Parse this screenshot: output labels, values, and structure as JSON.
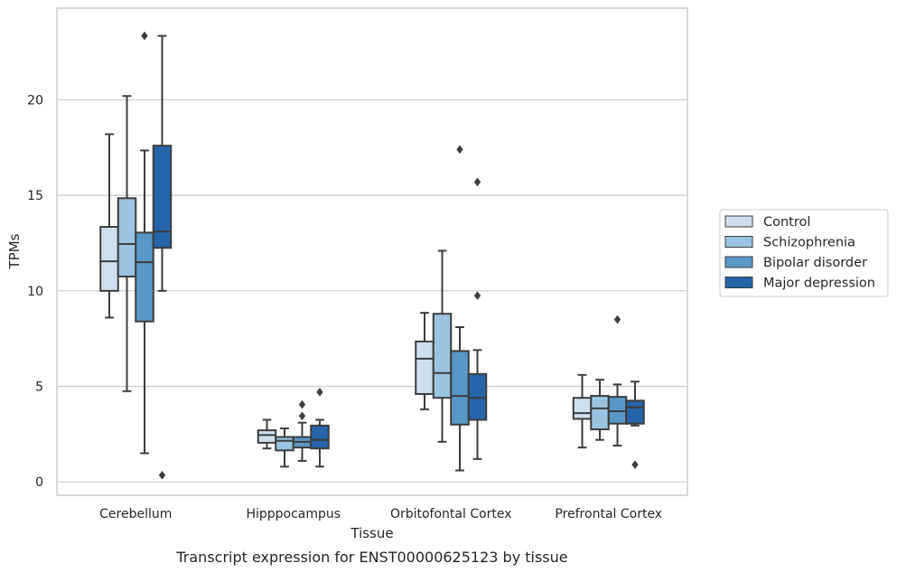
{
  "caption": "Transcript expression for ENST00000625123 by tissue",
  "chart_data": {
    "type": "box",
    "title": "",
    "xlabel": "Tissue",
    "ylabel": "TPMs",
    "ylim": [
      -0.7,
      24.8
    ],
    "yticks": [
      0,
      5,
      10,
      15,
      20
    ],
    "grid": "horizontal",
    "legend_position": "right",
    "categories": [
      "Cerebellum",
      "Hipppocampus",
      "Orbitofontal Cortex",
      "Prefrontal Cortex"
    ],
    "series": [
      {
        "name": "Control",
        "color": "#d0dfee",
        "boxes": [
          {
            "whisker_low": 8.6,
            "q1": 10.0,
            "median": 11.55,
            "q3": 13.35,
            "whisker_high": 18.2,
            "outliers": []
          },
          {
            "whisker_low": 1.75,
            "q1": 2.05,
            "median": 2.45,
            "q3": 2.7,
            "whisker_high": 3.25,
            "outliers": []
          },
          {
            "whisker_low": 3.8,
            "q1": 4.6,
            "median": 6.45,
            "q3": 7.35,
            "whisker_high": 8.85,
            "outliers": []
          },
          {
            "whisker_low": 1.8,
            "q1": 3.3,
            "median": 3.6,
            "q3": 4.4,
            "whisker_high": 5.6,
            "outliers": []
          }
        ]
      },
      {
        "name": "Schizophrenia",
        "color": "#9ac4df",
        "boxes": [
          {
            "whisker_low": 4.75,
            "q1": 10.75,
            "median": 12.45,
            "q3": 14.85,
            "whisker_high": 20.2,
            "outliers": []
          },
          {
            "whisker_low": 0.8,
            "q1": 1.65,
            "median": 2.15,
            "q3": 2.35,
            "whisker_high": 2.8,
            "outliers": []
          },
          {
            "whisker_low": 2.1,
            "q1": 4.4,
            "median": 5.7,
            "q3": 8.8,
            "whisker_high": 12.1,
            "outliers": []
          },
          {
            "whisker_low": 2.2,
            "q1": 2.75,
            "median": 3.85,
            "q3": 4.5,
            "whisker_high": 5.35,
            "outliers": []
          }
        ]
      },
      {
        "name": "Bipolar disorder",
        "color": "#5897c6",
        "boxes": [
          {
            "whisker_low": 1.5,
            "q1": 8.4,
            "median": 11.5,
            "q3": 13.05,
            "whisker_high": 17.35,
            "outliers": [
              23.35
            ]
          },
          {
            "whisker_low": 1.1,
            "q1": 1.8,
            "median": 2.1,
            "q3": 2.35,
            "whisker_high": 3.1,
            "outliers": [
              3.45,
              4.05
            ]
          },
          {
            "whisker_low": 0.6,
            "q1": 3.0,
            "median": 4.5,
            "q3": 6.85,
            "whisker_high": 8.1,
            "outliers": [
              17.4
            ]
          },
          {
            "whisker_low": 1.9,
            "q1": 3.05,
            "median": 3.7,
            "q3": 4.45,
            "whisker_high": 5.1,
            "outliers": [
              8.5
            ]
          }
        ]
      },
      {
        "name": "Major depression",
        "color": "#2565a8",
        "boxes": [
          {
            "whisker_low": 10.0,
            "q1": 12.25,
            "median": 13.1,
            "q3": 17.6,
            "whisker_high": 23.35,
            "outliers": [
              0.35
            ]
          },
          {
            "whisker_low": 0.8,
            "q1": 1.75,
            "median": 2.2,
            "q3": 2.95,
            "whisker_high": 3.25,
            "outliers": [
              4.7
            ]
          },
          {
            "whisker_low": 1.2,
            "q1": 3.25,
            "median": 4.4,
            "q3": 5.65,
            "whisker_high": 6.9,
            "outliers": [
              15.7,
              9.75
            ]
          },
          {
            "whisker_low": 2.95,
            "q1": 3.05,
            "median": 3.9,
            "q3": 4.25,
            "whisker_high": 5.25,
            "outliers": [
              0.9
            ]
          }
        ]
      }
    ]
  }
}
